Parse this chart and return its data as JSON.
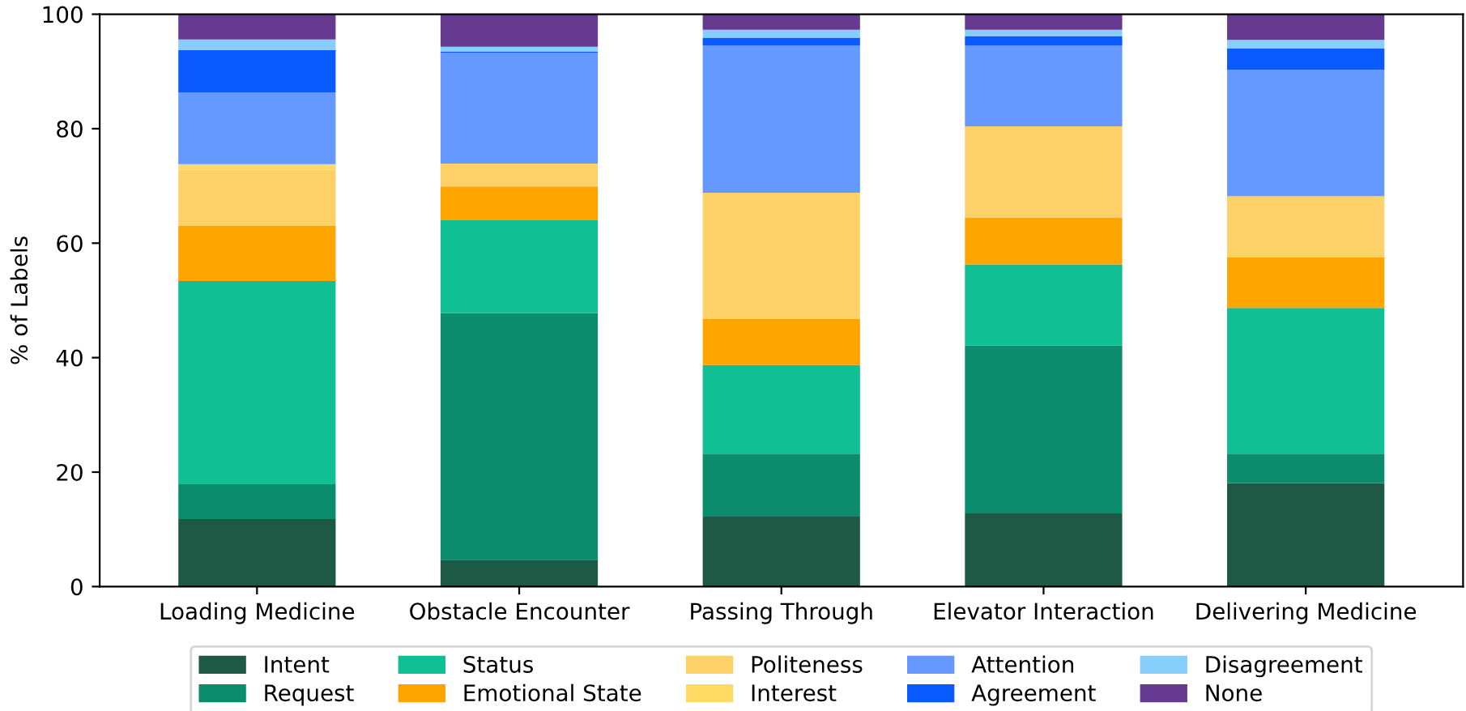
{
  "chart_data": {
    "type": "bar",
    "stacked": true,
    "ylabel": "% of Labels",
    "categories": [
      "Loading Medicine",
      "Obstacle Encounter",
      "Passing Through",
      "Elevator Interaction",
      "Delivering Medicine"
    ],
    "series": [
      {
        "name": "Intent",
        "color": "#1d5945",
        "values": [
          11.8,
          4.7,
          12.2,
          12.8,
          18.1
        ]
      },
      {
        "name": "Request",
        "color": "#0b8c6c",
        "values": [
          6.2,
          43.1,
          11.0,
          29.3,
          5.1
        ]
      },
      {
        "name": "Status",
        "color": "#10bf93",
        "values": [
          35.4,
          16.2,
          15.5,
          14.2,
          25.5
        ]
      },
      {
        "name": "Emotional State",
        "color": "#ffa500",
        "values": [
          9.6,
          5.9,
          8.1,
          8.2,
          8.8
        ]
      },
      {
        "name": "Politeness",
        "color": "#fed068",
        "values": [
          9.8,
          4.0,
          22.0,
          15.9,
          10.7
        ]
      },
      {
        "name": "Interest",
        "color": "#ffdb66",
        "values": [
          1.0,
          0,
          0,
          0,
          0
        ]
      },
      {
        "name": "Attention",
        "color": "#6699ff",
        "values": [
          12.5,
          19.4,
          25.7,
          14.1,
          22.1
        ]
      },
      {
        "name": "Agreement",
        "color": "#0a5aff",
        "values": [
          7.4,
          0.2,
          1.4,
          1.7,
          3.7
        ]
      },
      {
        "name": "Disagreement",
        "color": "#87cefa",
        "values": [
          1.9,
          0.8,
          1.4,
          1.1,
          1.5
        ]
      },
      {
        "name": "None",
        "color": "#673a91",
        "values": [
          4.3,
          5.7,
          2.7,
          2.7,
          4.5
        ]
      }
    ],
    "ylim": [
      0,
      100
    ],
    "yticks": [
      0,
      20,
      40,
      60,
      80,
      100
    ],
    "grid": false,
    "legend": "bottom"
  }
}
